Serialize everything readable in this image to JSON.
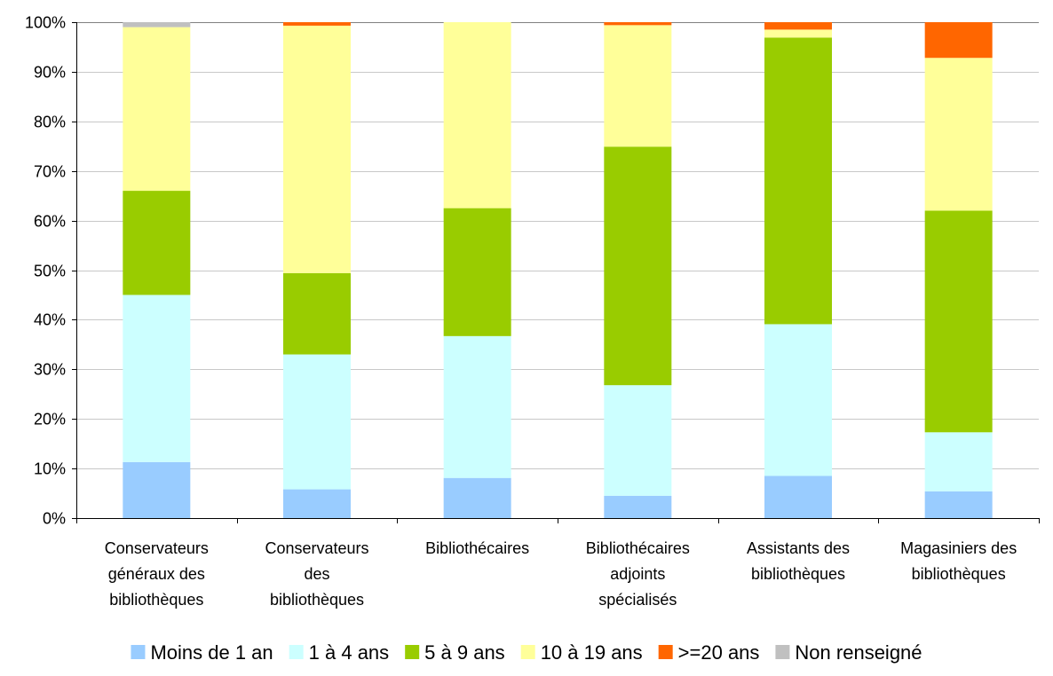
{
  "chart_data": {
    "type": "bar",
    "stacked": true,
    "percent": true,
    "ylim": [
      0,
      100
    ],
    "y_ticks": [
      "0%",
      "10%",
      "20%",
      "30%",
      "40%",
      "50%",
      "60%",
      "70%",
      "80%",
      "90%",
      "100%"
    ],
    "grid": true,
    "legend_position": "bottom",
    "categories": [
      [
        "Conservateurs",
        "généraux des",
        "bibliothèques"
      ],
      [
        "Conservateurs",
        "des",
        "bibliothèques"
      ],
      [
        "Bibliothécaires"
      ],
      [
        "Bibliothécaires",
        "adjoints",
        "spécialisés"
      ],
      [
        "Assistants des",
        "bibliothèques"
      ],
      [
        "Magasiniers des",
        "bibliothèques"
      ]
    ],
    "series": [
      {
        "name": "Moins de 1 an",
        "color": "#99ccff",
        "values": [
          11.3,
          5.8,
          8.1,
          4.5,
          8.5,
          5.4
        ]
      },
      {
        "name": "1 à 4 ans",
        "color": "#ccffff",
        "values": [
          33.7,
          27.2,
          28.6,
          22.3,
          30.6,
          11.9
        ]
      },
      {
        "name": "5 à 9 ans",
        "color": "#99cc00",
        "values": [
          21.0,
          16.4,
          25.8,
          48.1,
          57.8,
          44.7
        ]
      },
      {
        "name": "10 à 19 ans",
        "color": "#ffff99",
        "values": [
          33.0,
          49.9,
          37.5,
          24.5,
          1.6,
          30.8
        ]
      },
      {
        "name": ">=20 ans",
        "color": "#ff6600",
        "values": [
          0,
          0.7,
          0,
          0.6,
          1.5,
          7.2
        ]
      },
      {
        "name": "Non renseigné",
        "color": "#c0c0c0",
        "values": [
          1.0,
          0,
          0,
          0,
          0,
          0
        ]
      }
    ]
  }
}
